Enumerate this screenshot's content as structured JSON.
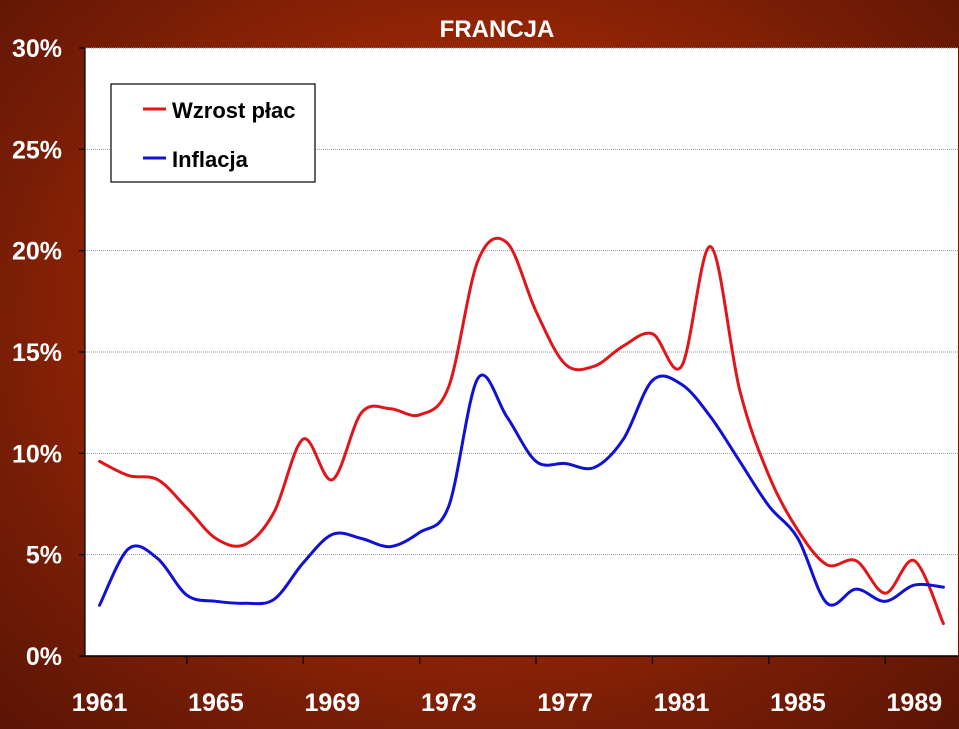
{
  "chart_data": {
    "type": "line",
    "title": "FRANCJA",
    "xlabel": "",
    "ylabel": "",
    "x_ticks": [
      "1961",
      "1965",
      "1969",
      "1973",
      "1977",
      "1981",
      "1985",
      "1989"
    ],
    "y_ticks": [
      "0%",
      "5%",
      "10%",
      "15%",
      "20%",
      "25%",
      "30%"
    ],
    "xlim": [
      1960.5,
      1990.5
    ],
    "ylim": [
      0,
      30
    ],
    "grid": "horizontal",
    "legend_position": "top-left",
    "series": [
      {
        "name": "Wzrost płac",
        "color": "#e0161b",
        "x": [
          1961,
          1962,
          1963,
          1964,
          1965,
          1966,
          1967,
          1968,
          1969,
          1970,
          1971,
          1972,
          1973,
          1974,
          1975,
          1976,
          1977,
          1978,
          1979,
          1980,
          1981,
          1982,
          1983,
          1984,
          1985,
          1986,
          1987,
          1988,
          1989,
          1990
        ],
        "values": [
          9.6,
          8.9,
          8.7,
          7.3,
          5.8,
          5.5,
          7.1,
          10.7,
          8.7,
          12.0,
          12.2,
          11.9,
          13.3,
          19.5,
          20.4,
          17.0,
          14.4,
          14.3,
          15.3,
          15.9,
          14.3,
          20.2,
          13.1,
          8.9,
          6.2,
          4.5,
          4.7,
          3.1,
          4.7,
          1.6
        ]
      },
      {
        "name": "Inflacja",
        "color": "#1111d4",
        "x": [
          1961,
          1962,
          1963,
          1964,
          1965,
          1966,
          1967,
          1968,
          1969,
          1970,
          1971,
          1972,
          1973,
          1974,
          1975,
          1976,
          1977,
          1978,
          1979,
          1980,
          1981,
          1982,
          1983,
          1984,
          1985,
          1986,
          1987,
          1988,
          1989,
          1990
        ],
        "values": [
          2.5,
          5.3,
          4.8,
          3.0,
          2.7,
          2.6,
          2.8,
          4.6,
          6.0,
          5.8,
          5.4,
          6.1,
          7.4,
          13.7,
          11.8,
          9.6,
          9.5,
          9.3,
          10.7,
          13.6,
          13.4,
          11.8,
          9.6,
          7.4,
          5.8,
          2.6,
          3.3,
          2.7,
          3.5,
          3.4
        ]
      }
    ]
  }
}
